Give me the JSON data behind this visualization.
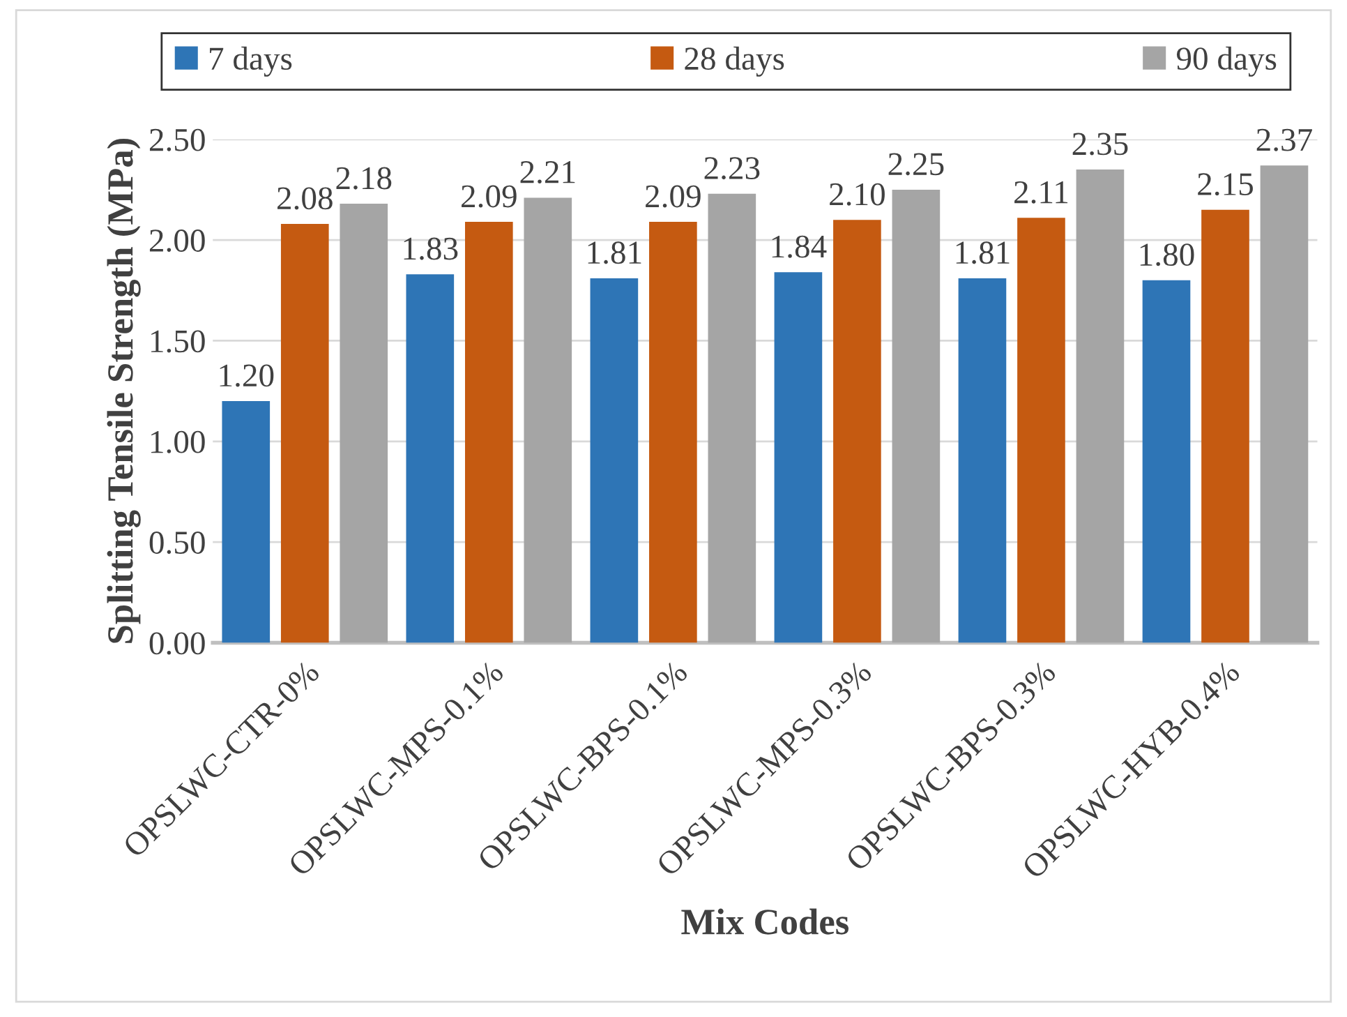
{
  "chart_data": {
    "type": "bar",
    "xlabel": "Mix Codes",
    "ylabel": "Splitting Tensile Strength (MPa)",
    "categories": [
      "OPSLWC-CTR-0%",
      "OPSLWC-MPS-0.1%",
      "OPSLWC-BPS-0.1%",
      "OPSLWC-MPS-0.3%",
      "OPSLWC-BPS-0.3%",
      "OPSLWC-HYB-0.4%"
    ],
    "series": [
      {
        "name": "7 days",
        "color": "#2e75b6",
        "values": [
          1.2,
          1.83,
          1.81,
          1.84,
          1.81,
          1.8
        ],
        "value_labels": [
          "1.20",
          "1.83",
          "1.81",
          "1.84",
          "1.81",
          "1.80"
        ]
      },
      {
        "name": "28 days",
        "color": "#c55a11",
        "values": [
          2.08,
          2.09,
          2.09,
          2.1,
          2.11,
          2.15
        ],
        "value_labels": [
          "2.08",
          "2.09",
          "2.09",
          "2.10",
          "2.11",
          "2.15"
        ]
      },
      {
        "name": "90 days",
        "color": "#a5a5a5",
        "values": [
          2.18,
          2.21,
          2.23,
          2.25,
          2.35,
          2.37
        ],
        "value_labels": [
          "2.18",
          "2.21",
          "2.23",
          "2.25",
          "2.35",
          "2.37"
        ]
      }
    ],
    "ylim": [
      0,
      2.5
    ],
    "yticks": [
      {
        "value": 0,
        "label": "0.00"
      },
      {
        "value": 0.5,
        "label": "0.50"
      },
      {
        "value": 1,
        "label": "1.00"
      },
      {
        "value": 1.5,
        "label": "1.50"
      },
      {
        "value": 2,
        "label": "2.00"
      },
      {
        "value": 2.5,
        "label": "2.50"
      }
    ],
    "grid": "y",
    "legend": "top"
  }
}
